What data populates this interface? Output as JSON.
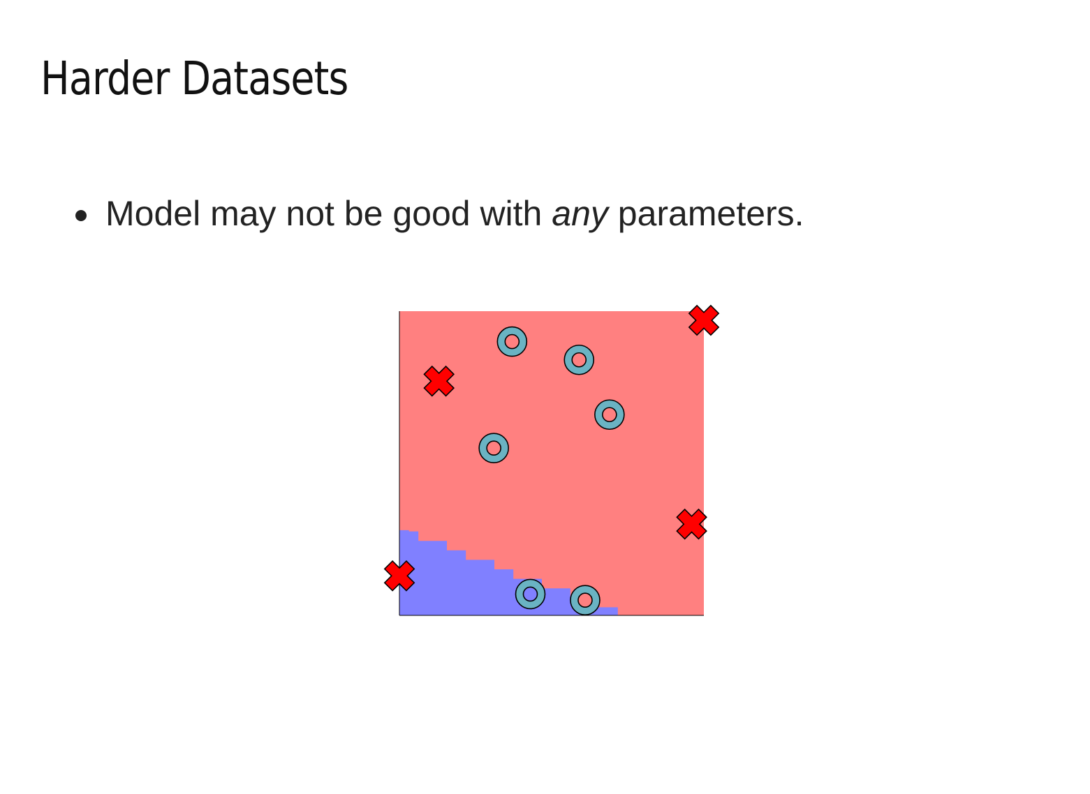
{
  "slide": {
    "title": "Harder Datasets"
  },
  "bullets": [
    {
      "before": "Model may not be good with ",
      "emphasis": "any",
      "after": " parameters."
    }
  ],
  "figure": {
    "colors": {
      "region_x_class": "#ff8080",
      "region_o_class": "#8080ff",
      "x_marker_fill": "#ff0000",
      "x_marker_stroke": "#000000",
      "o_marker_fill": "#6ab3c3",
      "o_marker_inner": "#ff8080",
      "frame": "#000000"
    },
    "decision_boundary": {
      "description_from": "left edge at about 72% from the top",
      "start": [
        0.0,
        0.28
      ],
      "end": [
        0.72,
        0.0
      ]
    },
    "points": {
      "x_class": [
        [
          0.0,
          0.13
        ],
        [
          0.13,
          0.77
        ],
        [
          0.96,
          0.3
        ],
        [
          1.0,
          0.97
        ]
      ],
      "o_class": [
        [
          0.37,
          0.9
        ],
        [
          0.59,
          0.84
        ],
        [
          0.69,
          0.66
        ],
        [
          0.31,
          0.55
        ],
        [
          0.43,
          0.07
        ],
        [
          0.61,
          0.05
        ]
      ]
    }
  }
}
